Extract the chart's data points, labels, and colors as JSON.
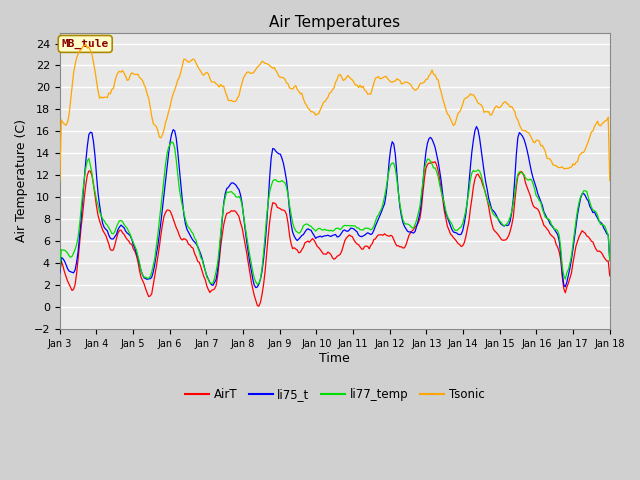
{
  "title": "Air Temperatures",
  "xlabel": "Time",
  "ylabel": "Air Temperature (C)",
  "ylim": [
    -2,
    25
  ],
  "yticks": [
    -2,
    0,
    2,
    4,
    6,
    8,
    10,
    12,
    14,
    16,
    18,
    20,
    22,
    24
  ],
  "line_colors": {
    "AirT": "#ff0000",
    "li75_t": "#0000ff",
    "li77_temp": "#00dd00",
    "Tsonic": "#ffa500"
  },
  "legend_labels": [
    "AirT",
    "li75_t",
    "li77_temp",
    "Tsonic"
  ],
  "annotation_text": "MB_tule",
  "annotation_bbox_facecolor": "#ffffcc",
  "annotation_bbox_edgecolor": "#aa8800",
  "fig_facecolor": "#d0d0d0",
  "plot_facecolor": "#e8e8e8",
  "grid_color": "#ffffff",
  "x_start": 3.0,
  "x_end": 18.0,
  "x_ticks": [
    3,
    4,
    5,
    6,
    7,
    8,
    9,
    10,
    11,
    12,
    13,
    14,
    15,
    16,
    17,
    18
  ],
  "x_tick_labels": [
    "Jan 3",
    "Jan 4",
    "Jan 5",
    "Jan 6",
    "Jan 7",
    "Jan 8",
    "Jan 9",
    "Jan 10",
    "Jan 11",
    "Jan 12",
    "Jan 13",
    "Jan 14",
    "Jan 15",
    "Jan 16",
    "Jan 17",
    "Jan 18"
  ]
}
